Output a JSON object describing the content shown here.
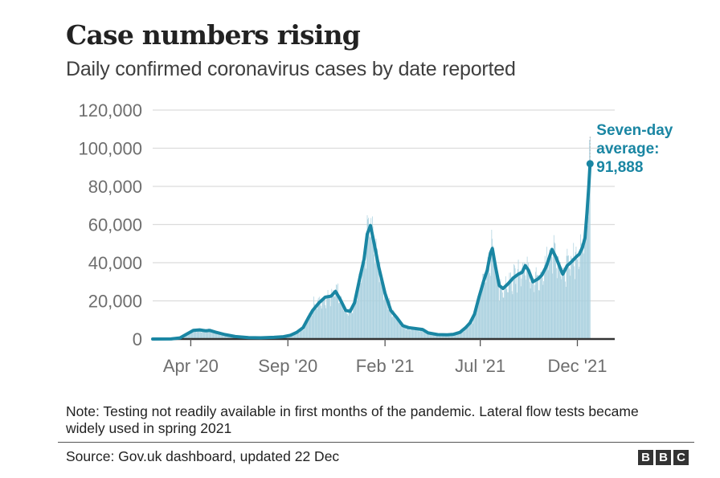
{
  "header": {
    "title": "Case numbers rising",
    "subtitle": "Daily confirmed coronavirus cases by date reported"
  },
  "chart_data": {
    "type": "area",
    "title": "Case numbers rising",
    "subtitle": "Daily confirmed coronavirus cases by date reported",
    "xlabel": "",
    "ylabel": "",
    "ylim": [
      0,
      120000
    ],
    "xlim": [
      "2020-02-01",
      "2021-12-31"
    ],
    "yticks": [
      0,
      20000,
      40000,
      60000,
      80000,
      100000,
      120000
    ],
    "ytick_labels": [
      "0",
      "20,000",
      "40,000",
      "60,000",
      "80,000",
      "100,000",
      "120,000"
    ],
    "xticks": [
      "2020-04-01",
      "2020-09-01",
      "2021-02-01",
      "2021-07-01",
      "2021-12-01"
    ],
    "xtick_labels": [
      "Apr '20",
      "Sep '20",
      "Feb '21",
      "Jul '21",
      "Dec '21"
    ],
    "grid": true,
    "series": [
      {
        "name": "Daily cases",
        "kind": "bars",
        "color": "#a7cfde",
        "note": "daily bars approximately follow the seven-day average with day-to-day spikes; highest daily value about 106,000 in late December 2021"
      },
      {
        "name": "Seven-day average",
        "kind": "line",
        "color": "#1a86a3",
        "points": [
          [
            "2020-02-01",
            0
          ],
          [
            "2020-03-01",
            50
          ],
          [
            "2020-03-15",
            600
          ],
          [
            "2020-03-25",
            2500
          ],
          [
            "2020-04-05",
            4500
          ],
          [
            "2020-04-15",
            4800
          ],
          [
            "2020-04-25",
            4300
          ],
          [
            "2020-05-01",
            4500
          ],
          [
            "2020-05-10",
            3600
          ],
          [
            "2020-05-25",
            2300
          ],
          [
            "2020-06-10",
            1300
          ],
          [
            "2020-07-01",
            700
          ],
          [
            "2020-07-20",
            650
          ],
          [
            "2020-08-10",
            900
          ],
          [
            "2020-08-25",
            1200
          ],
          [
            "2020-09-05",
            2000
          ],
          [
            "2020-09-15",
            3500
          ],
          [
            "2020-09-25",
            6000
          ],
          [
            "2020-10-03",
            11000
          ],
          [
            "2020-10-10",
            15000
          ],
          [
            "2020-10-20",
            19000
          ],
          [
            "2020-10-30",
            22000
          ],
          [
            "2020-11-08",
            22500
          ],
          [
            "2020-11-15",
            25000
          ],
          [
            "2020-11-22",
            21000
          ],
          [
            "2020-12-01",
            15000
          ],
          [
            "2020-12-08",
            14500
          ],
          [
            "2020-12-15",
            19000
          ],
          [
            "2020-12-24",
            33000
          ],
          [
            "2020-12-30",
            42000
          ],
          [
            "2021-01-04",
            55000
          ],
          [
            "2021-01-09",
            59500
          ],
          [
            "2021-01-15",
            50000
          ],
          [
            "2021-01-22",
            38000
          ],
          [
            "2021-02-01",
            24000
          ],
          [
            "2021-02-10",
            15000
          ],
          [
            "2021-02-20",
            11000
          ],
          [
            "2021-03-01",
            7000
          ],
          [
            "2021-03-10",
            6000
          ],
          [
            "2021-03-20",
            5500
          ],
          [
            "2021-04-01",
            5000
          ],
          [
            "2021-04-10",
            3200
          ],
          [
            "2021-04-25",
            2300
          ],
          [
            "2021-05-10",
            2200
          ],
          [
            "2021-05-20",
            2500
          ],
          [
            "2021-05-30",
            3500
          ],
          [
            "2021-06-08",
            6000
          ],
          [
            "2021-06-15",
            8500
          ],
          [
            "2021-06-22",
            13000
          ],
          [
            "2021-06-29",
            22000
          ],
          [
            "2021-07-06",
            30000
          ],
          [
            "2021-07-12",
            36000
          ],
          [
            "2021-07-17",
            45000
          ],
          [
            "2021-07-20",
            47500
          ],
          [
            "2021-07-25",
            38000
          ],
          [
            "2021-07-31",
            28000
          ],
          [
            "2021-08-06",
            26500
          ],
          [
            "2021-08-14",
            29000
          ],
          [
            "2021-08-22",
            32000
          ],
          [
            "2021-08-30",
            34000
          ],
          [
            "2021-09-05",
            35000
          ],
          [
            "2021-09-10",
            38500
          ],
          [
            "2021-09-15",
            36000
          ],
          [
            "2021-09-22",
            30000
          ],
          [
            "2021-09-30",
            31500
          ],
          [
            "2021-10-06",
            33500
          ],
          [
            "2021-10-13",
            38000
          ],
          [
            "2021-10-18",
            43000
          ],
          [
            "2021-10-22",
            47000
          ],
          [
            "2021-10-28",
            43000
          ],
          [
            "2021-11-03",
            38000
          ],
          [
            "2021-11-08",
            34000
          ],
          [
            "2021-11-15",
            38500
          ],
          [
            "2021-11-22",
            40500
          ],
          [
            "2021-11-29",
            43000
          ],
          [
            "2021-12-04",
            44500
          ],
          [
            "2021-12-09",
            48000
          ],
          [
            "2021-12-13",
            53000
          ],
          [
            "2021-12-16",
            66000
          ],
          [
            "2021-12-19",
            80000
          ],
          [
            "2021-12-21",
            91888
          ]
        ]
      }
    ],
    "annotation": {
      "lines": [
        "Seven-day",
        "average:",
        "91,888"
      ],
      "value": 91888,
      "date": "2021-12-21",
      "color": "#1a86a3"
    }
  },
  "footer": {
    "note": "Note: Testing not readily available in first months of the pandemic. Lateral flow tests became widely used in spring 2021",
    "source": "Source: Gov.uk dashboard, updated 22 Dec",
    "logo_letters": [
      "B",
      "B",
      "C"
    ]
  }
}
